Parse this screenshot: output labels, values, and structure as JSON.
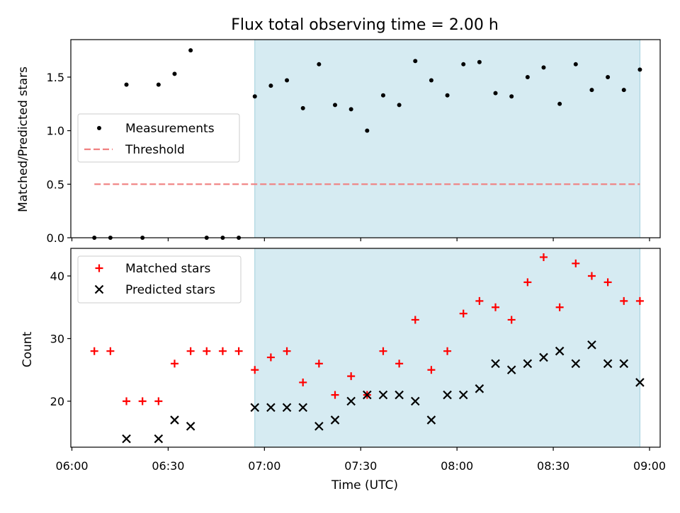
{
  "chart_data": [
    {
      "type": "scatter",
      "title": "Flux total observing time = 2.00 h",
      "ylabel": "Matched/Predicted stars",
      "xlabel": "",
      "ylim": [
        0,
        1.85
      ],
      "yticks": [
        "0.0",
        "0.5",
        "1.0",
        "1.5"
      ],
      "shaded_region": {
        "x_start": "06:57",
        "x_end": "08:57",
        "color": "#add8e6"
      },
      "legend": {
        "placement": "center-left",
        "entries": [
          "Measurements",
          "Threshold"
        ]
      },
      "series": [
        {
          "name": "Measurements",
          "marker": "dot",
          "color": "#000000",
          "points": [
            [
              "06:07",
              0.0
            ],
            [
              "06:12",
              0.0
            ],
            [
              "06:17",
              1.43
            ],
            [
              "06:22",
              0.0
            ],
            [
              "06:27",
              1.43
            ],
            [
              "06:32",
              1.53
            ],
            [
              "06:37",
              1.75
            ],
            [
              "06:42",
              0.0
            ],
            [
              "06:47",
              0.0
            ],
            [
              "06:52",
              0.0
            ],
            [
              "06:57",
              1.32
            ],
            [
              "07:02",
              1.42
            ],
            [
              "07:07",
              1.47
            ],
            [
              "07:12",
              1.21
            ],
            [
              "07:17",
              1.62
            ],
            [
              "07:22",
              1.24
            ],
            [
              "07:27",
              1.2
            ],
            [
              "07:32",
              1.0
            ],
            [
              "07:37",
              1.33
            ],
            [
              "07:42",
              1.24
            ],
            [
              "07:47",
              1.65
            ],
            [
              "07:52",
              1.47
            ],
            [
              "07:57",
              1.33
            ],
            [
              "08:02",
              1.62
            ],
            [
              "08:07",
              1.64
            ],
            [
              "08:12",
              1.35
            ],
            [
              "08:17",
              1.32
            ],
            [
              "08:22",
              1.5
            ],
            [
              "08:27",
              1.59
            ],
            [
              "08:32",
              1.25
            ],
            [
              "08:37",
              1.62
            ],
            [
              "08:42",
              1.38
            ],
            [
              "08:47",
              1.5
            ],
            [
              "08:52",
              1.38
            ],
            [
              "08:57",
              1.57
            ]
          ]
        },
        {
          "name": "Threshold",
          "style": "dashed",
          "color": "#f08080",
          "points": [
            [
              "06:07",
              0.5
            ],
            [
              "08:57",
              0.5
            ]
          ]
        }
      ]
    },
    {
      "type": "scatter",
      "title": "",
      "ylabel": "Count",
      "xlabel": "Time (UTC)",
      "ylim": [
        12.5,
        45
      ],
      "yticks": [
        "20",
        "30",
        "40"
      ],
      "xticks": [
        "06:00",
        "06:30",
        "07:00",
        "07:30",
        "08:00",
        "08:30",
        "09:00"
      ],
      "xlim": [
        "06:00",
        "09:00"
      ],
      "shaded_region": {
        "x_start": "06:57",
        "x_end": "08:57",
        "color": "#add8e6"
      },
      "legend": {
        "placement": "top-left",
        "entries": [
          "Matched stars",
          "Predicted stars"
        ]
      },
      "series": [
        {
          "name": "Matched stars",
          "marker": "plus",
          "color": "#ff0000",
          "points": [
            [
              "06:07",
              28
            ],
            [
              "06:12",
              28
            ],
            [
              "06:17",
              20
            ],
            [
              "06:22",
              20
            ],
            [
              "06:27",
              20
            ],
            [
              "06:32",
              26
            ],
            [
              "06:37",
              28
            ],
            [
              "06:42",
              28
            ],
            [
              "06:47",
              28
            ],
            [
              "06:52",
              28
            ],
            [
              "06:57",
              25
            ],
            [
              "07:02",
              27
            ],
            [
              "07:07",
              28
            ],
            [
              "07:12",
              23
            ],
            [
              "07:17",
              26
            ],
            [
              "07:22",
              21
            ],
            [
              "07:27",
              24
            ],
            [
              "07:32",
              21
            ],
            [
              "07:37",
              28
            ],
            [
              "07:42",
              26
            ],
            [
              "07:47",
              33
            ],
            [
              "07:52",
              25
            ],
            [
              "07:57",
              28
            ],
            [
              "08:02",
              34
            ],
            [
              "08:07",
              36
            ],
            [
              "08:12",
              35
            ],
            [
              "08:17",
              33
            ],
            [
              "08:22",
              39
            ],
            [
              "08:27",
              43
            ],
            [
              "08:32",
              35
            ],
            [
              "08:37",
              42
            ],
            [
              "08:42",
              40
            ],
            [
              "08:47",
              39
            ],
            [
              "08:52",
              36
            ],
            [
              "08:57",
              36
            ]
          ]
        },
        {
          "name": "Predicted stars",
          "marker": "x",
          "color": "#000000",
          "points": [
            [
              "06:17",
              14
            ],
            [
              "06:27",
              14
            ],
            [
              "06:32",
              17
            ],
            [
              "06:37",
              16
            ],
            [
              "06:57",
              19
            ],
            [
              "07:02",
              19
            ],
            [
              "07:07",
              19
            ],
            [
              "07:12",
              19
            ],
            [
              "07:17",
              16
            ],
            [
              "07:22",
              17
            ],
            [
              "07:27",
              20
            ],
            [
              "07:32",
              21
            ],
            [
              "07:37",
              21
            ],
            [
              "07:42",
              21
            ],
            [
              "07:47",
              20
            ],
            [
              "07:52",
              17
            ],
            [
              "07:57",
              21
            ],
            [
              "08:02",
              21
            ],
            [
              "08:07",
              22
            ],
            [
              "08:12",
              26
            ],
            [
              "08:17",
              25
            ],
            [
              "08:22",
              26
            ],
            [
              "08:27",
              27
            ],
            [
              "08:32",
              28
            ],
            [
              "08:37",
              26
            ],
            [
              "08:42",
              29
            ],
            [
              "08:47",
              26
            ],
            [
              "08:52",
              26
            ],
            [
              "08:57",
              23
            ]
          ]
        }
      ]
    }
  ]
}
